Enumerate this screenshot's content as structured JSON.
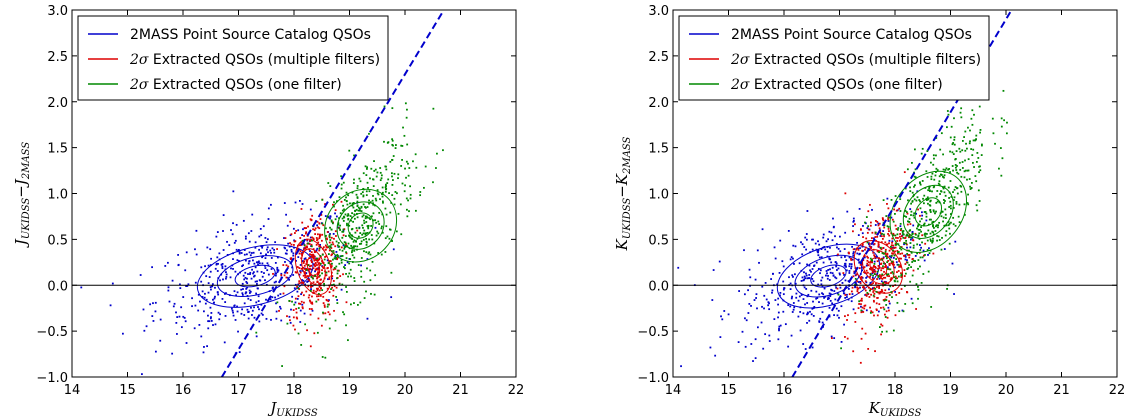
{
  "chart_data": [
    {
      "type": "scatter",
      "title": "",
      "xlabel_main": "J",
      "xlabel_sub": "UKIDSS",
      "ylabel_a_main": "J",
      "ylabel_a_sub": "UKIDSS",
      "ylabel_b_main": "J",
      "ylabel_b_sub": "2MASS",
      "xlim": [
        14,
        22
      ],
      "ylim": [
        -1.0,
        3.0
      ],
      "xticks": [
        "14",
        "15",
        "16",
        "17",
        "18",
        "19",
        "20",
        "21",
        "22"
      ],
      "yticks": [
        "−1.0",
        "−0.5",
        "0.0",
        "0.5",
        "1.0",
        "1.5",
        "2.0",
        "2.5",
        "3.0"
      ],
      "legend_position": "top-left",
      "reference_line": {
        "x": [
          16.7,
          20.7
        ],
        "y": [
          -1.0,
          3.0
        ]
      },
      "horizontal_line_y": 0.0,
      "series": [
        {
          "name": "2MASS Point Source Catalog QSOs",
          "color": "#0000cc",
          "center": [
            17.3,
            0.1
          ],
          "spread": [
            0.9,
            0.3
          ],
          "trend": 0.15,
          "count": 500
        },
        {
          "name": "Extracted QSOs (multiple filters)",
          "name_prefix": "2σ",
          "color": "#dd0000",
          "center": [
            18.35,
            0.2
          ],
          "spread": [
            0.25,
            0.3
          ],
          "trend": 0.2,
          "count": 360
        },
        {
          "name": "Extracted QSOs (one filter)",
          "name_prefix": "2σ",
          "color": "#008800",
          "center": [
            19.2,
            0.65
          ],
          "spread": [
            0.5,
            0.35
          ],
          "trend": 0.65,
          "count": 480
        }
      ]
    },
    {
      "type": "scatter",
      "title": "",
      "xlabel_main": "K",
      "xlabel_sub": "UKIDSS",
      "ylabel_a_main": "K",
      "ylabel_a_sub": "UKIDSS",
      "ylabel_b_main": "K",
      "ylabel_b_sub": "2MASS",
      "xlim": [
        14,
        22
      ],
      "ylim": [
        -1.0,
        3.0
      ],
      "xticks": [
        "14",
        "15",
        "16",
        "17",
        "18",
        "19",
        "20",
        "21",
        "22"
      ],
      "yticks": [
        "−1.0",
        "−0.5",
        "0.0",
        "0.5",
        "1.0",
        "1.5",
        "2.0",
        "2.5",
        "3.0"
      ],
      "legend_position": "top-left",
      "reference_line": {
        "x": [
          16.15,
          20.1
        ],
        "y": [
          -1.0,
          3.0
        ]
      },
      "horizontal_line_y": 0.0,
      "series": [
        {
          "name": "2MASS Point Source Catalog QSOs",
          "color": "#0000cc",
          "center": [
            16.8,
            0.1
          ],
          "spread": [
            0.8,
            0.3
          ],
          "trend": 0.2,
          "count": 500
        },
        {
          "name": "Extracted QSOs (multiple filters)",
          "name_prefix": "2σ",
          "color": "#dd0000",
          "center": [
            17.7,
            0.2
          ],
          "spread": [
            0.3,
            0.3
          ],
          "trend": 0.45,
          "count": 380
        },
        {
          "name": "Extracted QSOs (one filter)",
          "name_prefix": "2σ",
          "color": "#008800",
          "center": [
            18.6,
            0.8
          ],
          "spread": [
            0.55,
            0.35
          ],
          "trend": 0.75,
          "count": 520
        }
      ]
    }
  ]
}
